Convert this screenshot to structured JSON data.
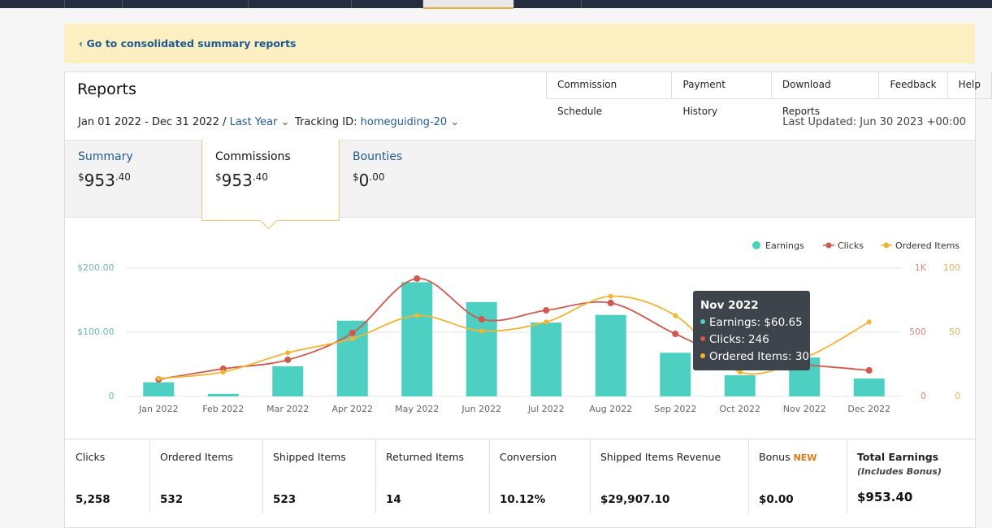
{
  "banner": {
    "link": "‹ Go to consolidated summary reports"
  },
  "header": {
    "title": "Reports",
    "buttons": [
      "Commission Schedule",
      "Payment History",
      "Download Reports",
      "Feedback",
      "Help"
    ],
    "date_range": "Jan 01 2022 - Dec 31 2022 /",
    "period": "Last Year",
    "tracking_label": "Tracking ID:",
    "tracking_id": "homeguiding-20",
    "last_updated": "Last Updated: Jun 30 2023 +00:00"
  },
  "tabs": [
    {
      "label": "Summary",
      "currency": "$",
      "whole": "953",
      "fraction": ".40"
    },
    {
      "label": "Commissions",
      "currency": "$",
      "whole": "953",
      "fraction": ".40"
    },
    {
      "label": "Bounties",
      "currency": "$",
      "whole": "0",
      "fraction": ".00"
    }
  ],
  "chart_data": {
    "type": "combo",
    "categories": [
      "Jan 2022",
      "Feb 2022",
      "Mar 2022",
      "Apr 2022",
      "May 2022",
      "Jun 2022",
      "Jul 2022",
      "Aug 2022",
      "Sep 2022",
      "Oct 2022",
      "Nov 2022",
      "Dec 2022"
    ],
    "series": [
      {
        "name": "Earnings",
        "type": "bar",
        "axis": "y",
        "color": "#4dd0c1",
        "values": [
          22,
          4,
          47,
          118,
          178,
          147,
          115,
          127,
          68,
          33,
          60.65,
          28
        ]
      },
      {
        "name": "Clicks",
        "type": "line",
        "axis": "y2",
        "color": "#d4574d",
        "values": [
          133,
          215,
          285,
          494,
          918,
          601,
          671,
          728,
          487,
          277,
          246,
          203
        ]
      },
      {
        "name": "Ordered Items",
        "type": "line",
        "axis": "y3",
        "color": "#f2b531",
        "values": [
          14,
          19,
          34,
          45,
          63,
          51,
          58,
          78,
          63,
          19,
          30,
          58
        ]
      }
    ],
    "ylim": [
      0,
      200
    ],
    "yticks": [
      0,
      {
        "value": 100,
        "label": "$100.00"
      },
      {
        "value": 200,
        "label": "$200.00"
      }
    ],
    "y2lim": [
      0,
      1000
    ],
    "y2ticks": [
      0,
      500,
      {
        "value": 1000,
        "label": "1K"
      }
    ],
    "y3lim": [
      0,
      100
    ],
    "y3ticks": [
      0,
      50,
      100
    ],
    "grid": true,
    "legend": "top-right"
  },
  "tooltip": {
    "title": "Nov 2022",
    "items": [
      "Earnings: $60.65",
      "Clicks: 246",
      "Ordered Items: 30"
    ]
  },
  "totals": {
    "headers": [
      "Clicks",
      "Ordered Items",
      "Shipped Items",
      "Returned Items",
      "Conversion",
      "Shipped Items Revenue",
      "Bonus",
      "Total Earnings"
    ],
    "bonus_badge": "NEW",
    "total_note": "(Includes Bonus)",
    "values": [
      "5,258",
      "532",
      "523",
      "14",
      "10.12%",
      "$29,907.10",
      "$0.00",
      "$953.40"
    ]
  }
}
